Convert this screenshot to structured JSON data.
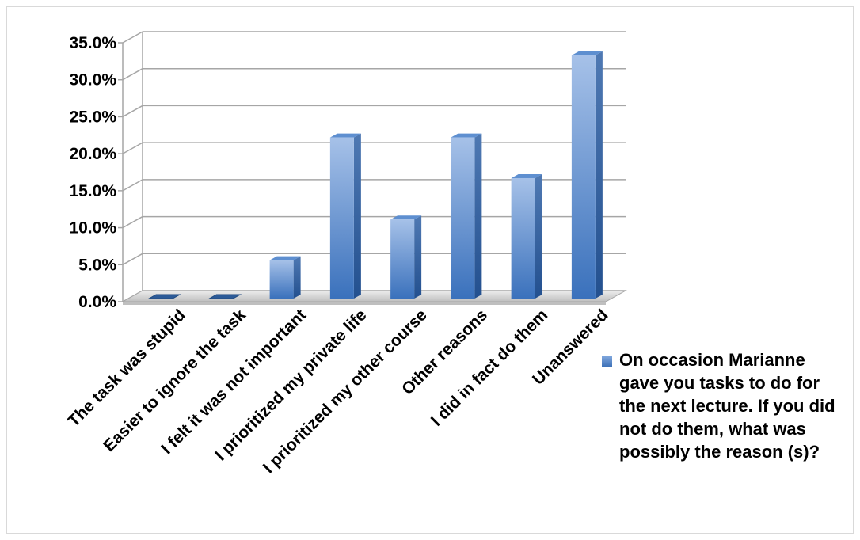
{
  "chart_data": {
    "type": "bar",
    "categories": [
      "The task was stupid",
      "Easier to ignore the task",
      "I felt it was not important",
      "I prioritized my private life",
      "I prioritized my other course",
      "Other reasons",
      "I did in fact do them",
      "Unanswered"
    ],
    "series": [
      {
        "name": "On occasion Marianne gave you tasks to do for the next lecture. If you did not do them, what was possibly the reason (s)?",
        "values": [
          0.0,
          0.0,
          5.6,
          22.2,
          11.1,
          22.2,
          16.7,
          33.3
        ],
        "color": "#4f81bd"
      }
    ],
    "y_ticks": [
      "0.0%",
      "5.0%",
      "10.0%",
      "15.0%",
      "20.0%",
      "25.0%",
      "30.0%",
      "35.0%"
    ],
    "ylim": [
      0,
      35
    ],
    "grid": true,
    "legend_position": "right",
    "style": "3d-column"
  }
}
